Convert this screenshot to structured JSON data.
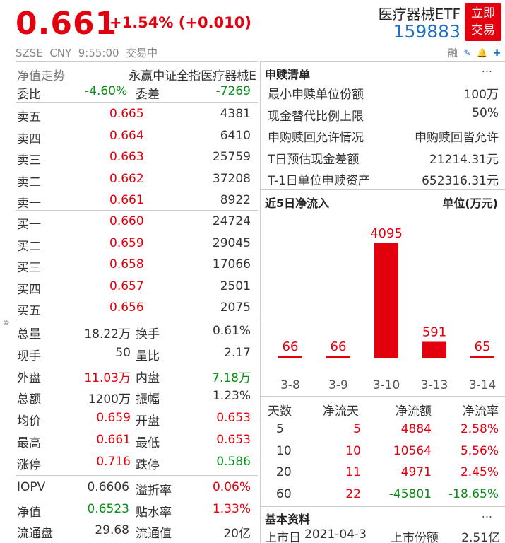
{
  "header": {
    "price": "0.661",
    "change": "+1.54% (+0.010)",
    "sub": "SZSE  CNY  9:55:00  交易中",
    "name": "医疗器械ETF",
    "code": "159883",
    "trade_btn": [
      "立即",
      "交易"
    ],
    "margin": "融"
  },
  "left": {
    "top": {
      "label": "净值走势",
      "value": "永赢中证全指医疗器械E"
    },
    "weibi": {
      "l1": "委比",
      "v1": "-4.60%",
      "l2": "委差",
      "v2": "-7269"
    },
    "asks": [
      {
        "label": "卖五",
        "price": "0.665",
        "vol": "4381"
      },
      {
        "label": "卖四",
        "price": "0.664",
        "vol": "6410"
      },
      {
        "label": "卖三",
        "price": "0.663",
        "vol": "25759"
      },
      {
        "label": "卖二",
        "price": "0.662",
        "vol": "37208"
      },
      {
        "label": "卖一",
        "price": "0.661",
        "vol": "8922"
      }
    ],
    "bids": [
      {
        "label": "买一",
        "price": "0.660",
        "vol": "24724"
      },
      {
        "label": "买二",
        "price": "0.659",
        "vol": "29045"
      },
      {
        "label": "买三",
        "price": "0.658",
        "vol": "17066"
      },
      {
        "label": "买四",
        "price": "0.657",
        "vol": "2501"
      },
      {
        "label": "买五",
        "price": "0.656",
        "vol": "2075"
      }
    ],
    "stats": [
      {
        "l1": "总量",
        "v1": "18.22万",
        "c1": "",
        "l2": "换手",
        "v2": "0.61%",
        "c2": ""
      },
      {
        "l1": "现手",
        "v1": "50",
        "c1": "",
        "l2": "量比",
        "v2": "2.17",
        "c2": ""
      },
      {
        "l1": "外盘",
        "v1": "11.03万",
        "c1": "red",
        "l2": "内盘",
        "v2": "7.18万",
        "c2": "green"
      },
      {
        "l1": "总额",
        "v1": "1200万",
        "c1": "",
        "l2": "振幅",
        "v2": "1.23%",
        "c2": ""
      },
      {
        "l1": "均价",
        "v1": "0.659",
        "c1": "red",
        "l2": "开盘",
        "v2": "0.653",
        "c2": "red"
      },
      {
        "l1": "最高",
        "v1": "0.661",
        "c1": "red",
        "l2": "最低",
        "v2": "0.653",
        "c2": "red"
      },
      {
        "l1": "涨停",
        "v1": "0.716",
        "c1": "red",
        "l2": "跌停",
        "v2": "0.586",
        "c2": "green"
      }
    ],
    "iopv": [
      {
        "l1": "IOPV",
        "v1": "0.6606",
        "c1": "",
        "l2": "溢折率",
        "v2": "0.06%",
        "c2": "red"
      },
      {
        "l1": "净值",
        "v1": "0.6523",
        "c1": "green",
        "l2": "贴水率",
        "v2": "1.33%",
        "c2": "red"
      },
      {
        "l1": "流通盘",
        "v1": "29.68",
        "c1": "",
        "l2": "流通值",
        "v2": "20亿",
        "c2": ""
      }
    ]
  },
  "right": {
    "redeem": {
      "title": "申赎清单",
      "more": "...",
      "rows": [
        {
          "label": "最小申赎单位份额",
          "value": "100万"
        },
        {
          "label": "现金替代比例上限",
          "value": "50%"
        },
        {
          "label": "申购赎回允许情况",
          "value": "申购赎回皆允许"
        },
        {
          "label": "T日预估现金差额",
          "value": "21214.31元"
        },
        {
          "label": "T-1日单位申赎资产",
          "value": "652316.31元"
        }
      ]
    },
    "flow": {
      "title": "近5日净流入",
      "unit": "单位(万元)"
    },
    "flowtable": {
      "headers": [
        "天数",
        "净流天",
        "净流额",
        "净流率"
      ],
      "rows": [
        {
          "d": "5",
          "n": "5",
          "amt": "4884",
          "rate": "2.58%",
          "c": "red"
        },
        {
          "d": "10",
          "n": "10",
          "amt": "10564",
          "rate": "5.56%",
          "c": "red"
        },
        {
          "d": "20",
          "n": "11",
          "amt": "4971",
          "rate": "2.45%",
          "c": "red"
        },
        {
          "d": "60",
          "n": "22",
          "amt": "-45801",
          "rate": "-18.65%",
          "c": "green"
        }
      ]
    },
    "basic": {
      "title": "基本资料",
      "more": "...",
      "l1": "上市日",
      "v1": "2021-04-3",
      "l2": "上市份额",
      "v2": "2.51亿"
    }
  },
  "chart_data": {
    "type": "bar",
    "categories": [
      "3-8",
      "3-9",
      "3-10",
      "3-13",
      "3-14"
    ],
    "values": [
      66,
      66,
      4095,
      591,
      65
    ],
    "ylabel": "单位(万元)",
    "color": "#e3000e"
  }
}
